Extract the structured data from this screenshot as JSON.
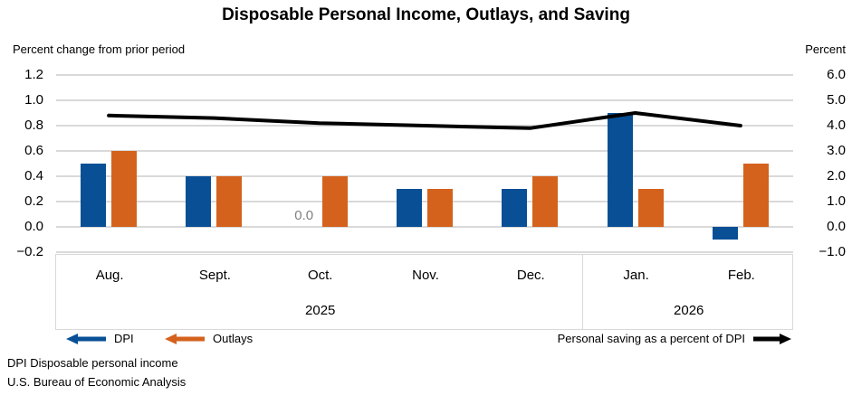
{
  "chart": {
    "title": "Disposable Personal Income, Outlays, and Saving",
    "left_axis_caption": "Percent change from prior period",
    "right_axis_caption": "Percent",
    "legend": {
      "dpi_label": "DPI",
      "outlays_label": "Outlays",
      "line_label": "Personal saving as a percent of DPI"
    },
    "footnotes": [
      "DPI Disposable personal income",
      "U.S. Bureau of Economic Analysis"
    ],
    "colors": {
      "dpi": "#084F96",
      "outlays": "#D4621C",
      "line": "#000000",
      "gridline": "#D9D9D9",
      "zero_label": "#808080"
    }
  },
  "chart_data": {
    "type": "bar+line",
    "categories": [
      "Aug.",
      "Sept.",
      "Oct.",
      "Nov.",
      "Dec.",
      "Jan.",
      "Feb."
    ],
    "year_groups": [
      {
        "label": "2025",
        "span": 5
      },
      {
        "label": "2026",
        "span": 2
      }
    ],
    "series": [
      {
        "name": "DPI",
        "type": "bar",
        "axis": "left",
        "values": [
          0.5,
          0.4,
          0.0,
          0.3,
          0.3,
          0.9,
          -0.1
        ]
      },
      {
        "name": "Outlays",
        "type": "bar",
        "axis": "left",
        "values": [
          0.6,
          0.4,
          0.4,
          0.3,
          0.4,
          0.3,
          0.5
        ]
      },
      {
        "name": "Personal saving as a percent of DPI",
        "type": "line",
        "axis": "right",
        "values": [
          4.4,
          4.3,
          4.1,
          4.0,
          3.9,
          4.5,
          4.0
        ]
      }
    ],
    "left_axis": {
      "title": "Percent change from prior period",
      "min": -0.2,
      "max": 1.2,
      "ticks": [
        "1.2",
        "1.0",
        "0.8",
        "0.6",
        "0.4",
        "0.2",
        "0.0",
        "−0.2"
      ]
    },
    "right_axis": {
      "title": "Percent",
      "min": -1.0,
      "max": 6.0,
      "ticks": [
        "6.0",
        "5.0",
        "4.0",
        "3.0",
        "2.0",
        "1.0",
        "0.0",
        "−1.0"
      ]
    },
    "data_labels": [
      {
        "series": "DPI",
        "category": "Oct.",
        "text": "0.0"
      }
    ],
    "grid": true,
    "legend_position": "bottom"
  }
}
